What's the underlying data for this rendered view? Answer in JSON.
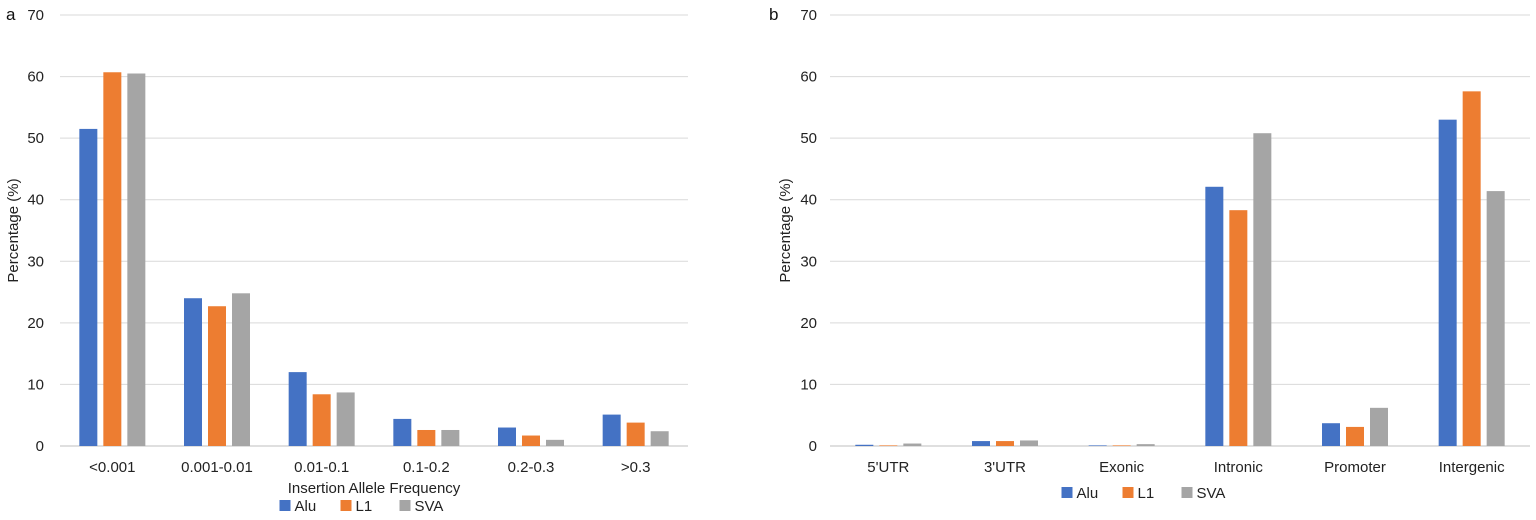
{
  "colors": {
    "Alu": "#4472c4",
    "L1": "#ed7d31",
    "SVA": "#a5a5a5"
  },
  "chart_data": [
    {
      "type": "bar",
      "panel_label": "a",
      "ylabel": "Percentage (%)",
      "xlabel": "Insertion Allele Frequency",
      "ylim": [
        0,
        70
      ],
      "yticks": [
        "0",
        "10",
        "20",
        "30",
        "40",
        "50",
        "60",
        "70"
      ],
      "grid": true,
      "legend": "bottom",
      "categories": [
        "<0.001",
        "0.001-0.01",
        "0.01-0.1",
        "0.1-0.2",
        "0.2-0.3",
        ">0.3"
      ],
      "series": [
        {
          "name": "Alu",
          "values": [
            51.5,
            24.0,
            12.0,
            4.4,
            3.0,
            5.1
          ]
        },
        {
          "name": "L1",
          "values": [
            60.7,
            22.7,
            8.4,
            2.6,
            1.7,
            3.8
          ]
        },
        {
          "name": "SVA",
          "values": [
            60.5,
            24.8,
            8.7,
            2.6,
            1.0,
            2.4
          ]
        }
      ]
    },
    {
      "type": "bar",
      "panel_label": "b",
      "ylabel": "Percentage (%)",
      "xlabel": "",
      "ylim": [
        0,
        70
      ],
      "yticks": [
        "0",
        "10",
        "20",
        "30",
        "40",
        "50",
        "60",
        "70"
      ],
      "grid": true,
      "legend": "bottom",
      "categories": [
        "5'UTR",
        "3'UTR",
        "Exonic",
        "Intronic",
        "Promoter",
        "Intergenic"
      ],
      "series": [
        {
          "name": "Alu",
          "values": [
            0.2,
            0.8,
            0.1,
            42.1,
            3.7,
            53.0
          ]
        },
        {
          "name": "L1",
          "values": [
            0.1,
            0.8,
            0.1,
            38.3,
            3.1,
            57.6
          ]
        },
        {
          "name": "SVA",
          "values": [
            0.4,
            0.9,
            0.3,
            50.8,
            6.2,
            41.4
          ]
        }
      ]
    }
  ]
}
